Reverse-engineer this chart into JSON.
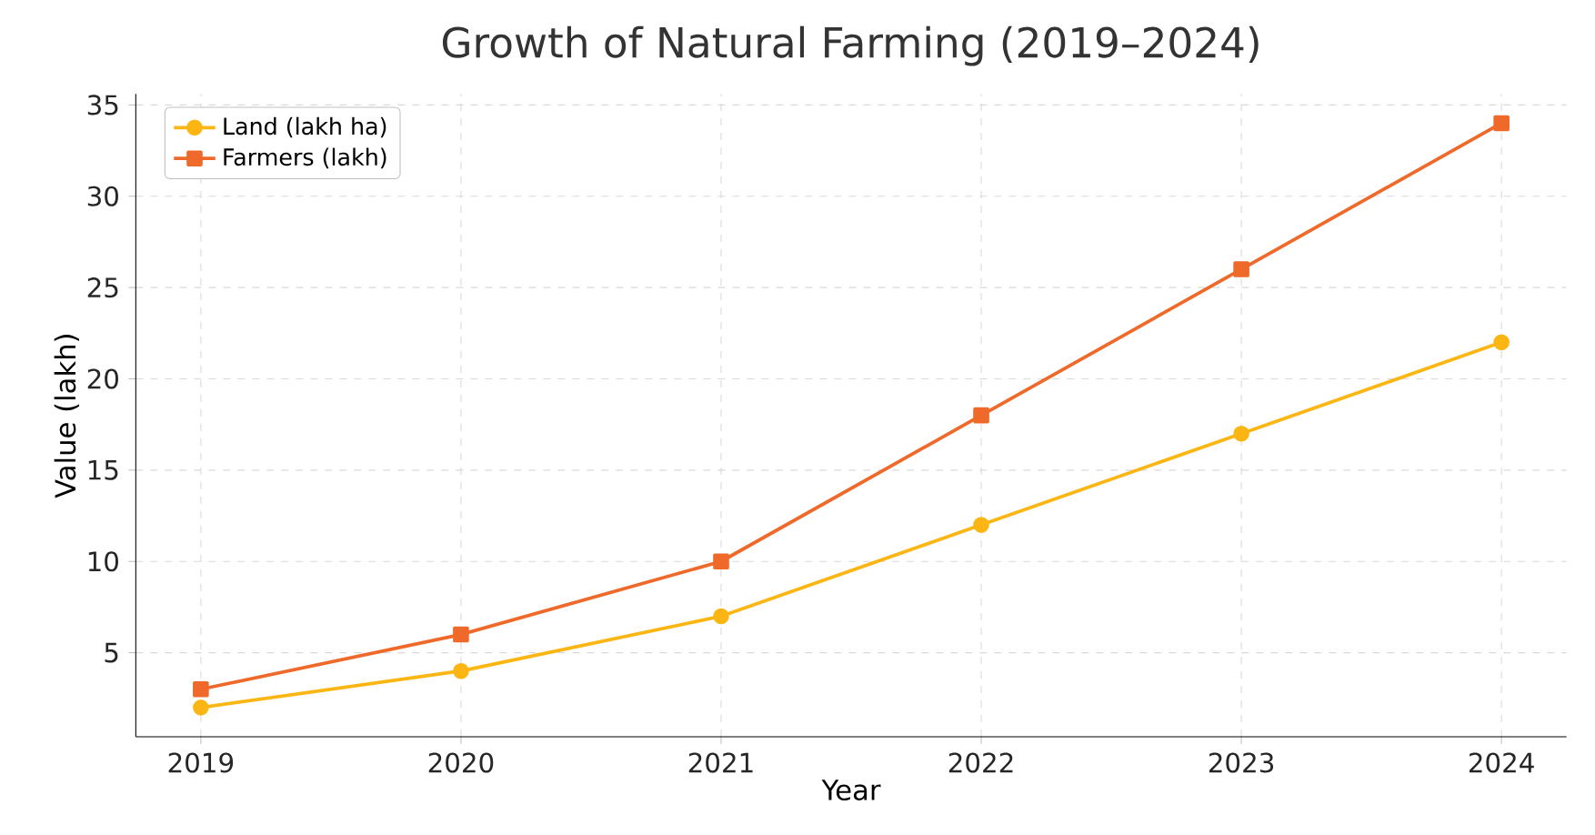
{
  "chart_data": {
    "type": "line",
    "title": "Growth of Natural Farming (2019–2024)",
    "xlabel": "Year",
    "ylabel": "Value (lakh)",
    "x": [
      2019,
      2020,
      2021,
      2022,
      2023,
      2024
    ],
    "series": [
      {
        "name": "Land (lakh ha)",
        "color": "#fbb614",
        "marker": "circle",
        "values": [
          2,
          4,
          7,
          12,
          17,
          22
        ]
      },
      {
        "name": "Farmers (lakh)",
        "color": "#ef6a2a",
        "marker": "square",
        "values": [
          3,
          6,
          10,
          18,
          26,
          34
        ]
      }
    ],
    "xlim": [
      2018.75,
      2024.25
    ],
    "xticks": [
      2019,
      2020,
      2021,
      2022,
      2023,
      2024
    ],
    "ylim": [
      0.4,
      35.6
    ],
    "yticks": [
      5,
      10,
      15,
      20,
      25,
      30,
      35
    ],
    "grid": true,
    "legend": "top left",
    "line_style": "solid"
  }
}
